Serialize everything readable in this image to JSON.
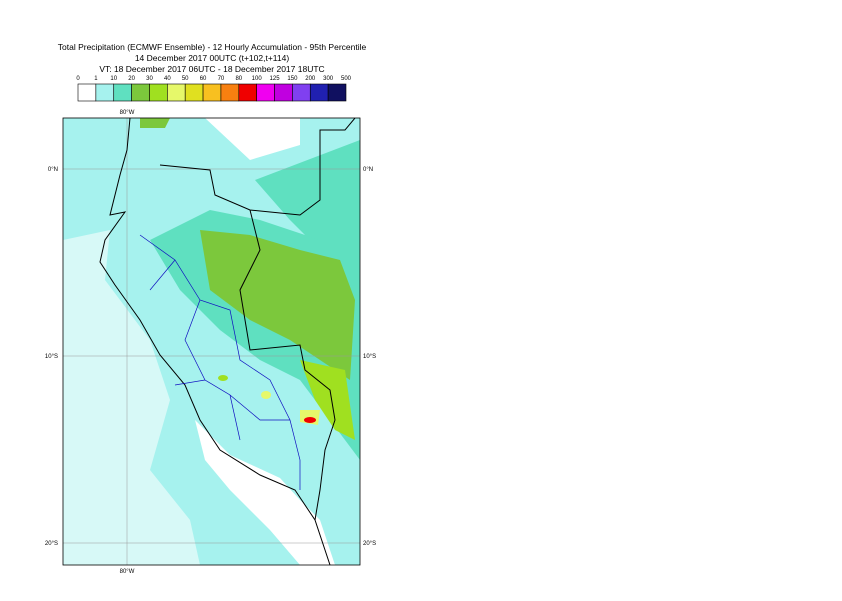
{
  "title": [
    "Total Precipitation (ECMWF Ensemble) - 12 Hourly Accumulation - 95th Percentile",
    "14 December 2017 00UTC (t+102,t+114)",
    "VT: 18 December 2017 06UTC - 18 December 2017 18UTC"
  ],
  "legend": {
    "labels": [
      "0",
      "1",
      "10",
      "20",
      "30",
      "40",
      "50",
      "60",
      "70",
      "80",
      "100",
      "125",
      "150",
      "200",
      "300",
      "500"
    ],
    "colors": [
      "#ffffff",
      "#a6f2ee",
      "#5fe0c0",
      "#7cc83c",
      "#a0e020",
      "#e6f86a",
      "#e0e020",
      "#f8c020",
      "#f88010",
      "#f00000",
      "#f000f0",
      "#c000e0",
      "#8040f0",
      "#2020b0",
      "#101060"
    ]
  },
  "map": {
    "lat_labels": [
      "0°N",
      "10°S",
      "20°S"
    ],
    "lon_labels": [
      "80°W"
    ]
  }
}
